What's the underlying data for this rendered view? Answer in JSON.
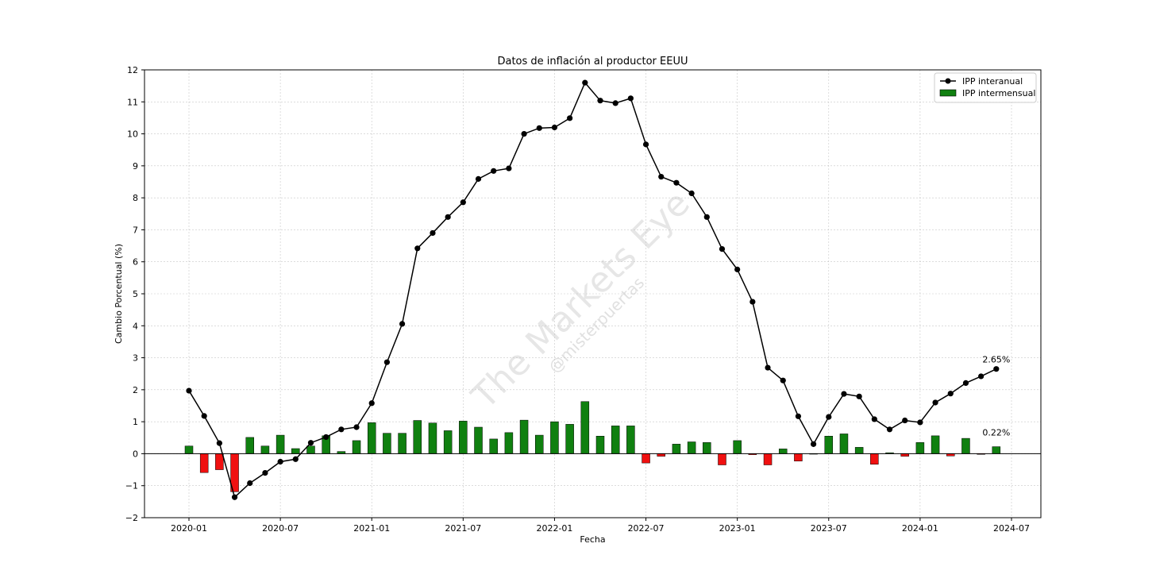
{
  "chart_data": {
    "type": "bar+line",
    "title": "Datos de inflación al productor EEUU",
    "xlabel": "Fecha",
    "ylabel": "Cambio Porcentual (%)",
    "ylim": [
      -2,
      12
    ],
    "yticks": [
      -2,
      -1,
      0,
      1,
      2,
      3,
      4,
      5,
      6,
      7,
      8,
      9,
      10,
      11,
      12
    ],
    "xticks": [
      "2020-01",
      "2020-07",
      "2021-01",
      "2021-07",
      "2022-01",
      "2022-07",
      "2023-01",
      "2023-07",
      "2024-01",
      "2024-07"
    ],
    "x": [
      "2020-01",
      "2020-02",
      "2020-03",
      "2020-04",
      "2020-05",
      "2020-06",
      "2020-07",
      "2020-08",
      "2020-09",
      "2020-10",
      "2020-11",
      "2020-12",
      "2021-01",
      "2021-02",
      "2021-03",
      "2021-04",
      "2021-05",
      "2021-06",
      "2021-07",
      "2021-08",
      "2021-09",
      "2021-10",
      "2021-11",
      "2021-12",
      "2022-01",
      "2022-02",
      "2022-03",
      "2022-04",
      "2022-05",
      "2022-06",
      "2022-07",
      "2022-08",
      "2022-09",
      "2022-10",
      "2022-11",
      "2022-12",
      "2023-01",
      "2023-02",
      "2023-03",
      "2023-04",
      "2023-05",
      "2023-06",
      "2023-07",
      "2023-08",
      "2023-09",
      "2023-10",
      "2023-11",
      "2023-12",
      "2024-01",
      "2024-02",
      "2024-03",
      "2024-04",
      "2024-05",
      "2024-06"
    ],
    "series": [
      {
        "name": "IPP interanual",
        "kind": "line",
        "color": "#000000",
        "values": [
          1.97,
          1.18,
          0.33,
          -1.36,
          -0.92,
          -0.6,
          -0.25,
          -0.17,
          0.34,
          0.52,
          0.76,
          0.83,
          1.58,
          2.86,
          4.06,
          6.42,
          6.9,
          7.4,
          7.86,
          8.59,
          8.84,
          8.92,
          10.0,
          10.18,
          10.2,
          10.49,
          11.6,
          11.04,
          10.96,
          11.11,
          9.67,
          8.66,
          8.47,
          8.14,
          7.4,
          6.4,
          5.76,
          4.75,
          2.69,
          2.29,
          1.17,
          0.3,
          1.15,
          1.87,
          1.79,
          1.08,
          0.76,
          1.04,
          0.98,
          1.6,
          1.88,
          2.21,
          2.42,
          2.65
        ]
      },
      {
        "name": "IPP intermensual",
        "kind": "bar",
        "color_positive": "#108010",
        "color_negative": "#f01010",
        "values": [
          0.24,
          -0.59,
          -0.5,
          -1.19,
          0.51,
          0.24,
          0.58,
          0.16,
          0.24,
          0.56,
          0.07,
          0.41,
          0.97,
          0.64,
          0.64,
          1.04,
          0.96,
          0.72,
          1.02,
          0.83,
          0.46,
          0.66,
          1.05,
          0.58,
          1.0,
          0.92,
          1.63,
          0.55,
          0.87,
          0.87,
          -0.29,
          -0.08,
          0.3,
          0.37,
          0.35,
          -0.35,
          0.41,
          -0.03,
          -0.35,
          0.15,
          -0.23,
          0.0,
          0.55,
          0.62,
          0.2,
          -0.33,
          0.03,
          -0.08,
          0.35,
          0.56,
          -0.07,
          0.48,
          -0.02,
          0.22
        ]
      }
    ],
    "annotations": [
      "2.65%",
      "0.22%"
    ],
    "grid": true,
    "legend_position": "top-right"
  },
  "watermark": {
    "main": "The Markets Eye",
    "sub": "@misterpuertas"
  }
}
